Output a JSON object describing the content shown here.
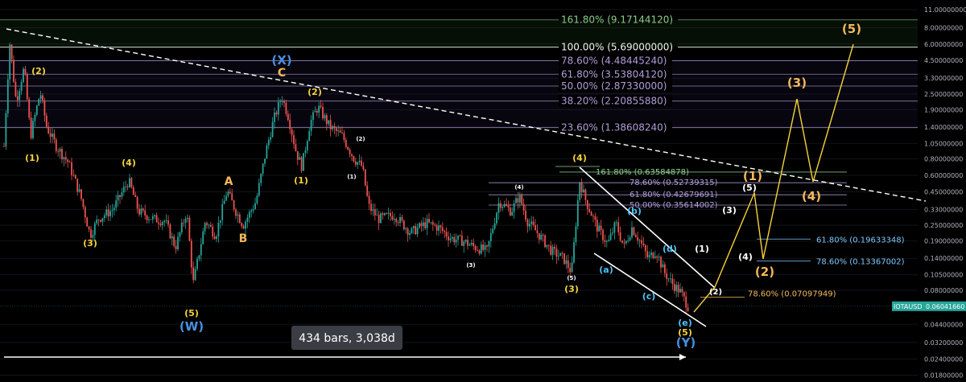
{
  "chart_data": {
    "type": "candlestick",
    "symbol": "IOTAUSD",
    "last_price": "0.06041660",
    "y_scale": "log",
    "y_ticks": [
      "11.00000000",
      "8.00000000",
      "6.00000000",
      "4.50000000",
      "3.30000000",
      "2.50000000",
      "1.90000000",
      "1.40000000",
      "1.05000000",
      "0.80000000",
      "0.60000000",
      "0.45000000",
      "0.33000000",
      "0.25000000",
      "0.19000000",
      "0.14000000",
      "0.10500000",
      "0.08000000",
      "0.04400000",
      "0.03200000",
      "0.02400000",
      "0.01800000"
    ],
    "y_tick_values": [
      11,
      8,
      6,
      4.5,
      3.3,
      2.5,
      1.9,
      1.4,
      1.05,
      0.8,
      0.6,
      0.45,
      0.33,
      0.25,
      0.19,
      0.14,
      0.105,
      0.08,
      0.044,
      0.032,
      0.024,
      0.018
    ],
    "y_range": [
      0.016,
      13
    ],
    "fib_major": [
      {
        "label": "161.80% (9.17144120)",
        "value": 9.1714412,
        "color": "#8fd18f"
      },
      {
        "label": "100.00% (5.69000000)",
        "value": 5.69,
        "color": "#ffffff"
      },
      {
        "label": "78.60% (4.48445240)",
        "value": 4.4844524,
        "color": "#b39ddb"
      },
      {
        "label": "61.80% (3.53804120)",
        "value": 3.5380412,
        "color": "#b39ddb"
      },
      {
        "label": "50.00% (2.87330000)",
        "value": 2.8733,
        "color": "#b39ddb"
      },
      {
        "label": "38.20% (2.20855880)",
        "value": 2.2085588,
        "color": "#b39ddb"
      },
      {
        "label": "23.60% (1.38608240)",
        "value": 1.3860824,
        "color": "#b39ddb"
      }
    ],
    "fib_minor": [
      {
        "label": "161.80% (0.63584878)",
        "value": 0.63584878,
        "color": "#8fd18f"
      },
      {
        "label": "78.60% (0.52739315)",
        "value": 0.52739315,
        "color": "#b39ddb"
      },
      {
        "label": "61.80% (0.42679691)",
        "value": 0.42679691,
        "color": "#b39ddb"
      },
      {
        "label": "50.00% (0.35614002)",
        "value": 0.35614002,
        "color": "#b39ddb"
      }
    ],
    "fib_right": [
      {
        "label": "61.80% (0.19633348)",
        "value": 0.19633348,
        "color": "#7ec8ff"
      },
      {
        "label": "78.60% (0.13367002)",
        "value": 0.13367002,
        "color": "#7ec8ff"
      },
      {
        "label": "78.60% (0.07097949)",
        "value": 0.07097949,
        "color": "#f5b85c"
      }
    ],
    "measure_label": "434 bars, 3,038d",
    "wave_labels": [
      "(X)",
      "C",
      "(2)",
      "(2)",
      "(1)",
      "(1)",
      "(1)",
      "(2)",
      "(3)",
      "(4)",
      "A",
      "B",
      "(3)",
      "(4)",
      "(5)",
      "(W)",
      "(3)",
      "(4)",
      "(5)",
      "(4)",
      "(3)",
      "(5)",
      "(b)",
      "(a)",
      "(d)",
      "(c)",
      "(e)",
      "(5)",
      "(Y)",
      "(1)",
      "(5)",
      "(3)",
      "(4)",
      "(2)",
      "(2)",
      "(1)",
      "(3)",
      "(4)",
      "(5)",
      "161.80% (0.63584878)"
    ]
  },
  "colors": {
    "up": "#26a69a",
    "down": "#ef5350",
    "yellow_wave": "#f5d33b",
    "orange_wave": "#f5b85c",
    "blue_wave": "#4a90e2",
    "teal_wave": "#4fc3f7",
    "white": "#ffffff",
    "price_tag": "#26a69a"
  }
}
